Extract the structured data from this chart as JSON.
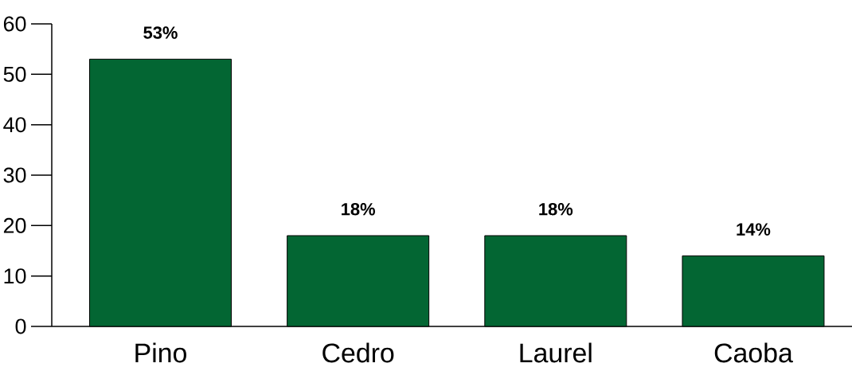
{
  "chart_data": {
    "type": "bar",
    "categories": [
      "Pino",
      "Cedro",
      "Laurel",
      "Caoba"
    ],
    "values": [
      53,
      18,
      18,
      14
    ],
    "value_labels": [
      "53%",
      "18%",
      "18%",
      "14%"
    ],
    "color": "#036633",
    "ylim": [
      0,
      60
    ],
    "yticks": [
      0,
      10,
      20,
      30,
      40,
      50,
      60
    ],
    "grid": false
  }
}
